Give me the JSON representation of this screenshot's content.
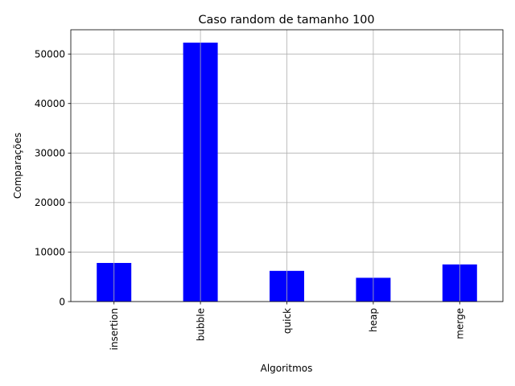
{
  "chart_data": {
    "type": "bar",
    "title": "Caso random de tamanho 100",
    "xlabel": "Algoritmos",
    "ylabel": "Comparações",
    "categories": [
      "insertion",
      "bubble",
      "quick",
      "heap",
      "merge"
    ],
    "values": [
      7800,
      52300,
      6200,
      4800,
      7500
    ],
    "ylim": [
      0,
      54900
    ],
    "yticks": [
      0,
      10000,
      20000,
      30000,
      40000,
      50000
    ],
    "ytick_labels": [
      "0",
      "10000",
      "20000",
      "30000",
      "40000",
      "50000"
    ],
    "grid": true,
    "bar_color": "#0000ff",
    "grid_color": "#b0b0b0"
  }
}
